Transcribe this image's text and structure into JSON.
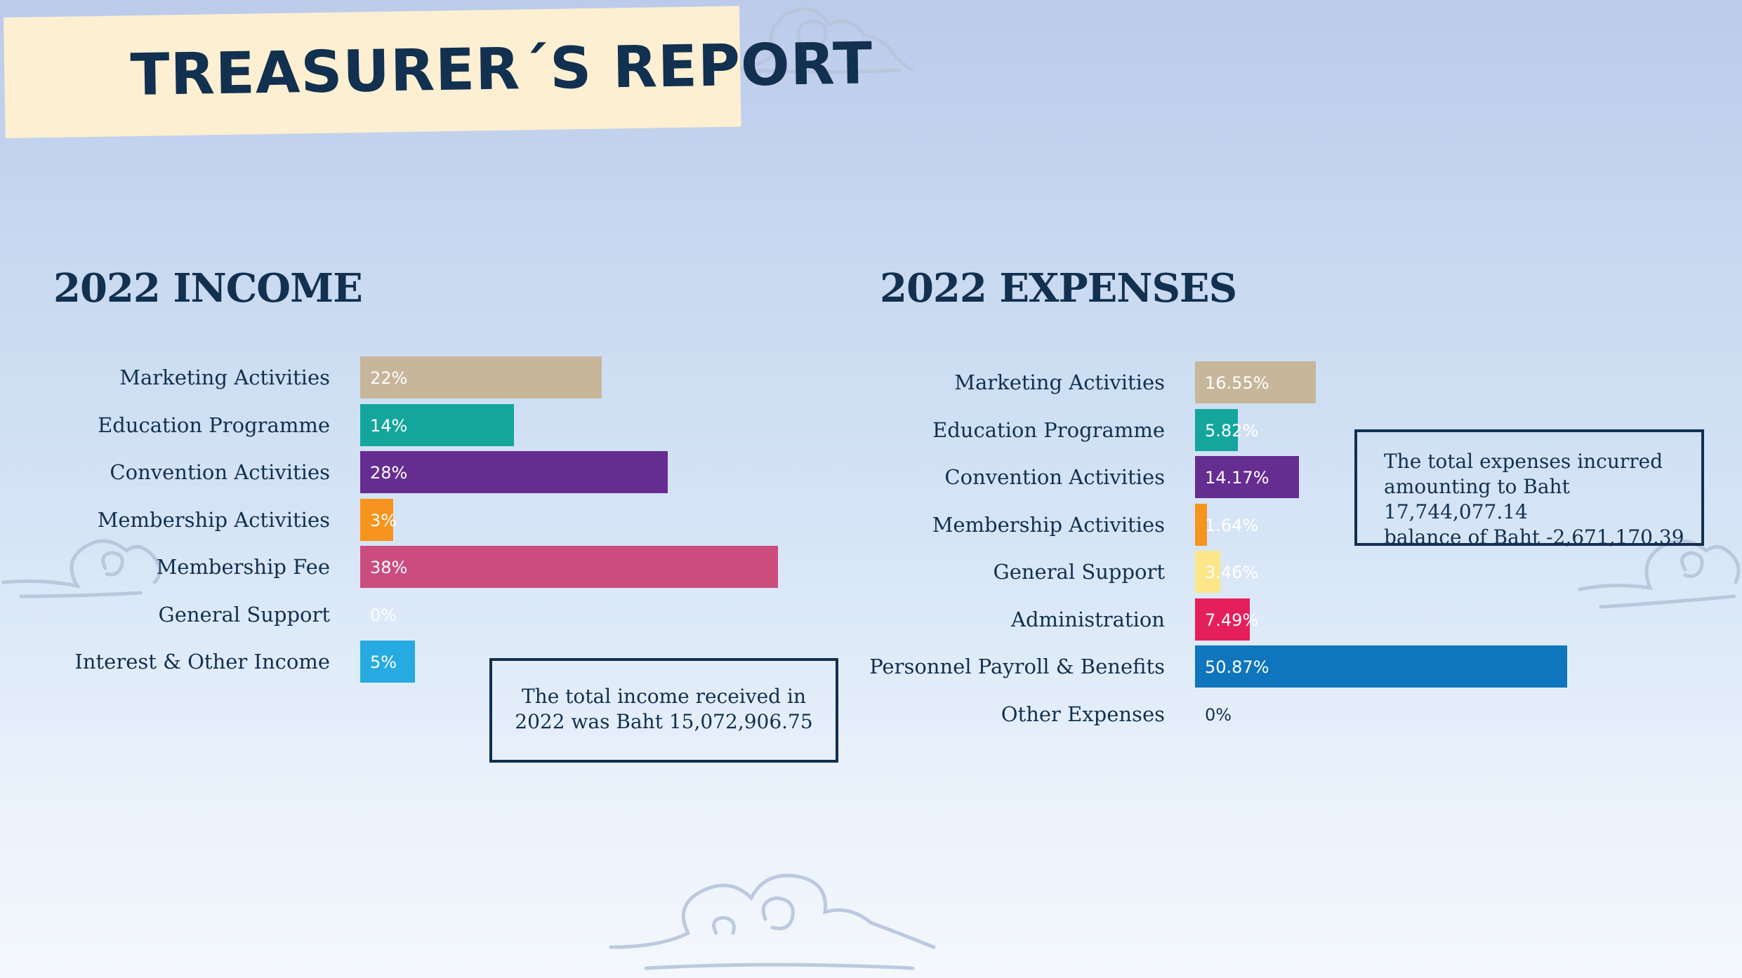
{
  "banner": {
    "title": "TREASURER´S REPORT"
  },
  "chart_data": [
    {
      "type": "bar",
      "orientation": "horizontal",
      "title": "2022 INCOME",
      "unit": "%",
      "xlim": [
        0,
        38
      ],
      "categories": [
        "Marketing Activities",
        "Education Programme",
        "Convention Activities",
        "Membership Activities",
        "Membership Fee",
        "General Support",
        "Interest & Other Income"
      ],
      "values": [
        22,
        14,
        28,
        3,
        38,
        0,
        5
      ],
      "labels": [
        "22%",
        "14%",
        "28%",
        "3%",
        "38%",
        "0%",
        "5%"
      ],
      "colors": [
        "#c7b69a",
        "#14a69d",
        "#662d91",
        "#f7941d",
        "#cc4c7e",
        "#ffffff",
        "#27aae1"
      ],
      "note": [
        "The total income received in",
        "2022 was Baht 15,072,906.75"
      ]
    },
    {
      "type": "bar",
      "orientation": "horizontal",
      "title": "2022 EXPENSES",
      "unit": "%",
      "xlim": [
        0,
        50.87
      ],
      "categories": [
        "Marketing Activities",
        "Education Programme",
        "Convention Activities",
        "Membership Activities",
        "General Support",
        "Administration",
        "Personnel Payroll & Benefits",
        "Other Expenses"
      ],
      "values": [
        16.55,
        5.82,
        14.17,
        1.64,
        3.46,
        7.49,
        50.87,
        0
      ],
      "labels": [
        "16.55%",
        "5.82%",
        "14.17%",
        "1.64%",
        "3.46%",
        "7.49%",
        "50.87%",
        "0%"
      ],
      "colors": [
        "#c7b69a",
        "#14a69d",
        "#662d91",
        "#f7941d",
        "#fde68a",
        "#e51f5b",
        "#0f75bc",
        "#12304f"
      ],
      "note": [
        "The total expenses incurred",
        "amounting to Baht 17,744,077.14",
        "balance of Baht -2,671,170.39"
      ]
    }
  ]
}
